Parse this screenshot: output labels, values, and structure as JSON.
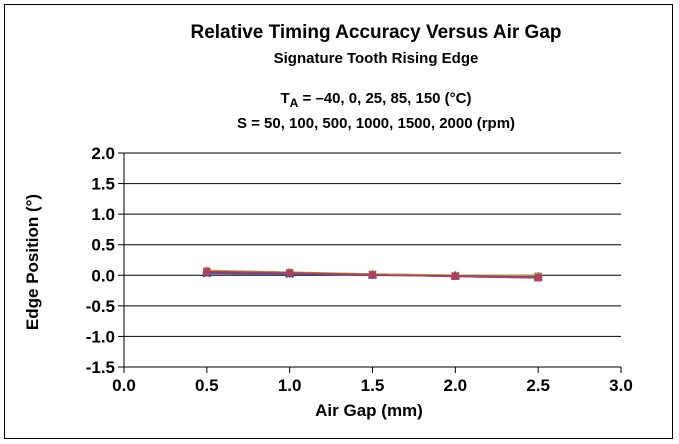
{
  "chart_data": {
    "type": "line",
    "title": "Relative Timing Accuracy Versus Air Gap",
    "subtitle": "Signature Tooth Rising Edge",
    "condition_ta": {
      "prefix": "T",
      "subscript": "A",
      "text": " = –40, 0, 25, 85, 150 (°C)"
    },
    "condition_s": "S = 50, 100, 500, 1000, 1500, 2000 (rpm)",
    "xlabel": "Air Gap (mm)",
    "ylabel": "Edge Position (°)",
    "xlim": [
      0.0,
      3.0
    ],
    "ylim": [
      -1.5,
      2.0
    ],
    "x_ticks": [
      "0.0",
      "0.5",
      "1.0",
      "1.5",
      "2.0",
      "2.5",
      "3.0"
    ],
    "y_ticks": [
      "2.0",
      "1.5",
      "1.0",
      "0.5",
      "0.0",
      "-0.5",
      "-1.0",
      "-1.5"
    ],
    "grid": "horizontal",
    "legend": "none",
    "x": [
      0.5,
      1.0,
      1.5,
      2.0,
      2.5
    ],
    "series": [
      {
        "values": [
          0.06,
          0.04,
          0.01,
          -0.01,
          -0.04
        ],
        "color": "#8a3a3a",
        "marker": "square"
      },
      {
        "values": [
          0.05,
          0.03,
          0.01,
          -0.01,
          -0.03
        ],
        "color": "#2a2a8a",
        "marker": "diamond"
      },
      {
        "values": [
          0.07,
          0.04,
          0.02,
          0.0,
          -0.02
        ],
        "color": "#3a7a3a",
        "marker": "triangle"
      },
      {
        "values": [
          0.03,
          0.02,
          0.01,
          -0.01,
          -0.02
        ],
        "color": "#4a5ac0",
        "marker": "x"
      },
      {
        "values": [
          0.07,
          0.04,
          0.01,
          -0.02,
          -0.04
        ],
        "color": "#c03a7a",
        "marker": "square"
      },
      {
        "values": [
          0.08,
          0.05,
          0.02,
          0.0,
          -0.01
        ],
        "color": "#c0a030",
        "marker": "circle"
      },
      {
        "values": [
          0.04,
          0.03,
          0.0,
          -0.01,
          -0.03
        ],
        "color": "#6a3a8a",
        "marker": "triangle"
      },
      {
        "values": [
          0.06,
          0.04,
          0.01,
          -0.02,
          -0.04
        ],
        "color": "#b04060",
        "marker": "square"
      }
    ]
  }
}
